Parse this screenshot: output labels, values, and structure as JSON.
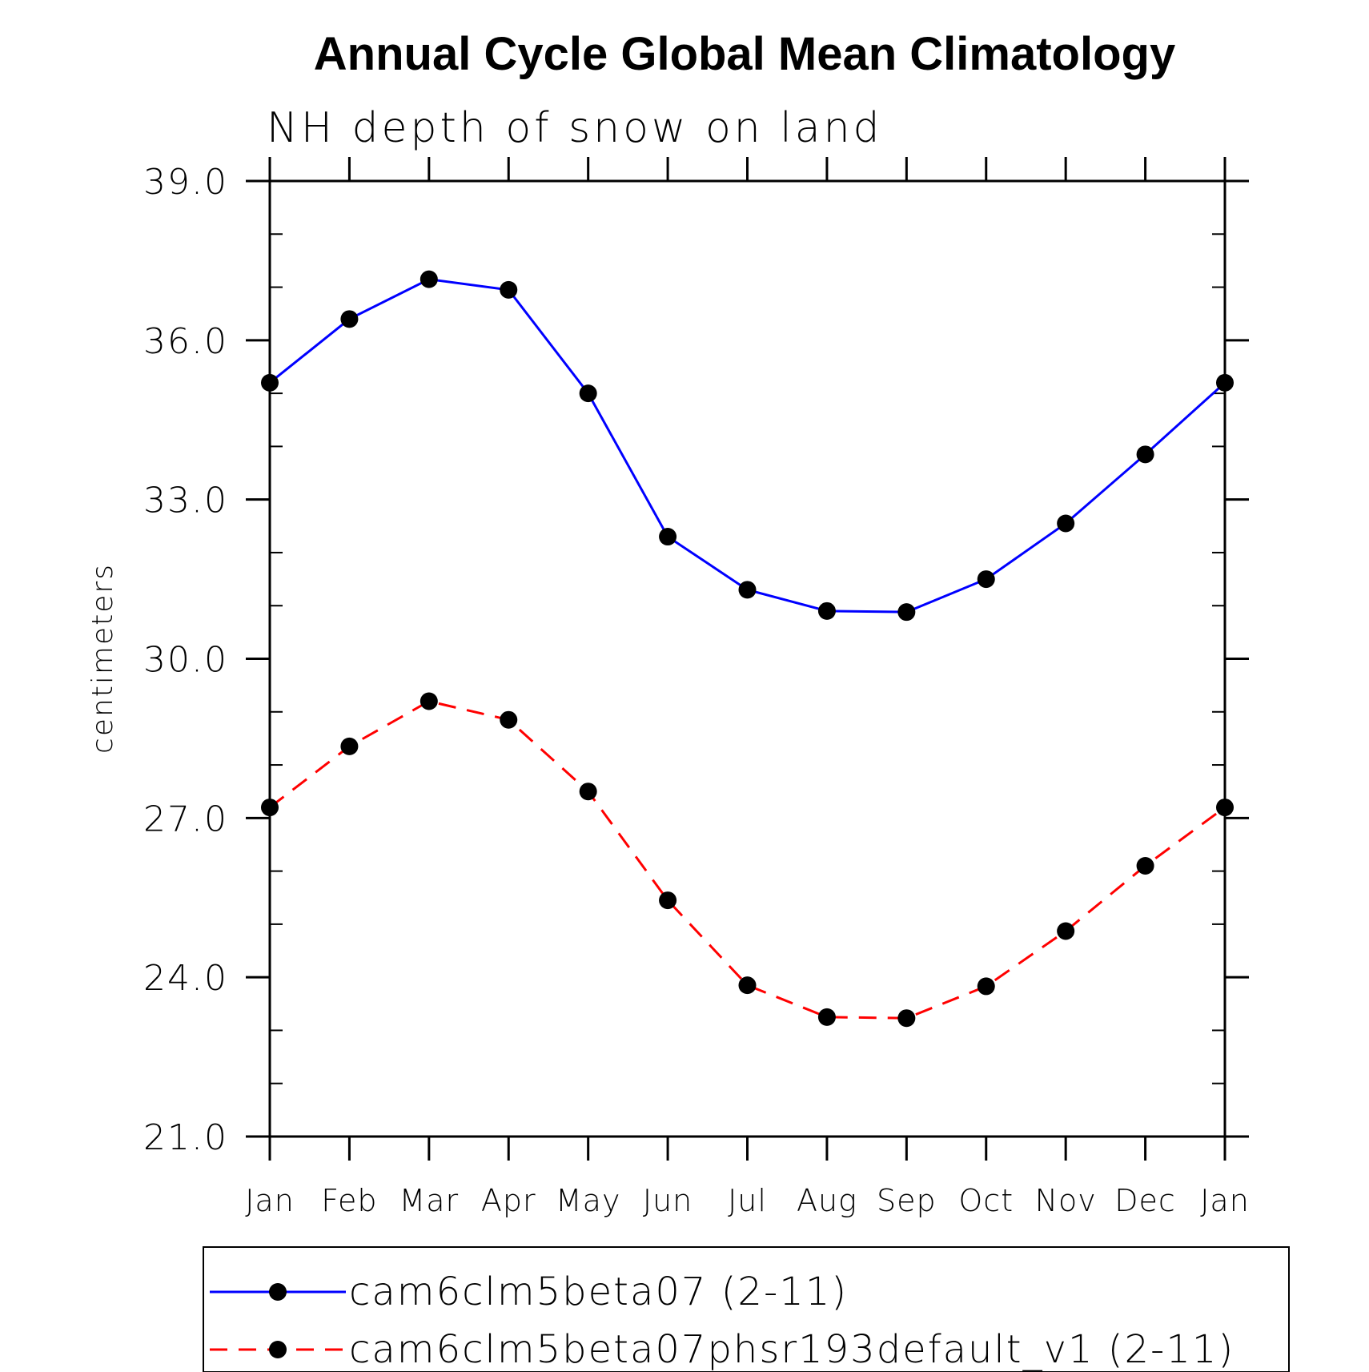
{
  "chart_data": {
    "type": "line",
    "title": "Annual Cycle Global Mean Climatology",
    "subtitle": "NH depth of snow on land",
    "ylabel": "centimeters",
    "xlabel": "",
    "categories": [
      "Jan",
      "Feb",
      "Mar",
      "Apr",
      "May",
      "Jun",
      "Jul",
      "Aug",
      "Sep",
      "Oct",
      "Nov",
      "Dec",
      "Jan"
    ],
    "yticks": [
      "21.0",
      "24.0",
      "27.0",
      "30.0",
      "33.0",
      "36.0",
      "39.0"
    ],
    "ylim": [
      21,
      39
    ],
    "ytick_step": 3,
    "yminor_step": 1,
    "grid": false,
    "legend_position": "bottom",
    "series": [
      {
        "name": "cam6clm5beta07 (2-11)",
        "color": "#0000ff",
        "line_style": "solid",
        "marker": "filled-circle",
        "marker_color": "#000000",
        "values": [
          35.2,
          36.4,
          37.15,
          36.95,
          35.0,
          32.3,
          31.3,
          30.9,
          30.88,
          31.5,
          32.55,
          33.85,
          35.2
        ]
      },
      {
        "name": "cam6clm5beta07phsr193default_v1 (2-11)",
        "color": "#ff0000",
        "line_style": "dashed",
        "marker": "filled-circle",
        "marker_color": "#000000",
        "values": [
          27.2,
          28.35,
          29.2,
          28.85,
          27.5,
          25.45,
          23.85,
          23.25,
          23.23,
          23.83,
          24.87,
          26.1,
          27.2
        ]
      }
    ]
  }
}
